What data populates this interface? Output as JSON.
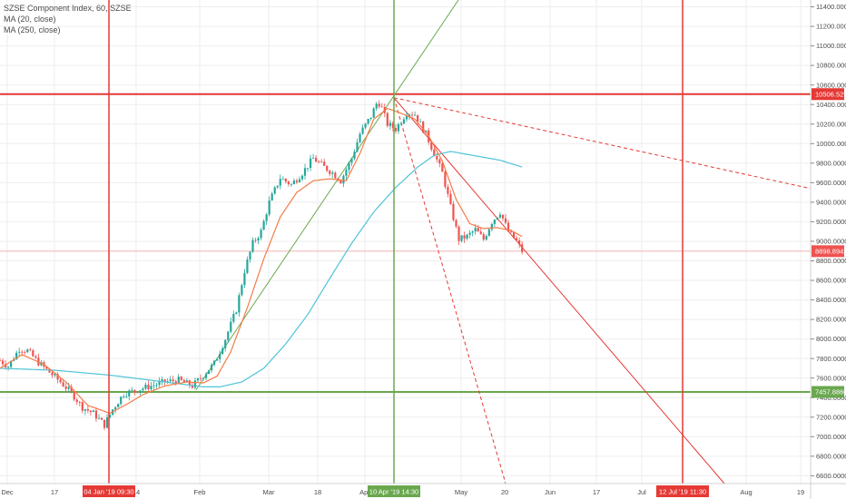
{
  "legend": {
    "title": "SZSE Component Index, 60, SZSE",
    "ma20": "MA (20, close)",
    "ma250": "MA (250, close)"
  },
  "colors": {
    "up": "#26a69a",
    "down": "#ef5350",
    "ma20": "#f57c47",
    "ma250": "#4fc3d8",
    "red": "#e53935",
    "green": "#6aa84f",
    "grid": "#eeeeee",
    "text": "#4a4a4a"
  },
  "chart_data": {
    "type": "candlestick",
    "symbol": "SZSE Component Index",
    "interval": "60",
    "y_axis": {
      "range": [
        6520,
        11470
      ],
      "ticks": [
        "6600.0000",
        "6800.0000",
        "7000.0000",
        "7200.0000",
        "7400.0000",
        "7600.0000",
        "7800.0000",
        "8000.0000",
        "8200.0000",
        "8400.0000",
        "8600.0000",
        "8800.0000",
        "9000.0000",
        "9200.0000",
        "9400.0000",
        "9600.0000",
        "9800.0000",
        "10000.0000",
        "10200.0000",
        "10400.0000",
        "10600.0000",
        "10800.0000",
        "11000.0000",
        "11200.0000",
        "11400.0000"
      ]
    },
    "x_axis": {
      "ticks": [
        "Dec",
        "17",
        "14",
        "Feb",
        "Mar",
        "18",
        "Apr",
        "May",
        "20",
        "Jun",
        "17",
        "Jul",
        "Aug",
        "19"
      ],
      "x_date_labels": [
        "04 Jan '19   09:30",
        "10 Apr '19   14:30",
        "12 Jul '19   11:30"
      ]
    },
    "price_labels": {
      "upper": "10506.5259",
      "last": "8898.8942",
      "lower": "7457.8860"
    },
    "price_path": [
      [
        0.0,
        7780
      ],
      [
        0.3,
        7720
      ],
      [
        0.7,
        7900
      ],
      [
        1.0,
        7880
      ],
      [
        1.4,
        7760
      ],
      [
        1.8,
        7660
      ],
      [
        2.2,
        7560
      ],
      [
        2.6,
        7450
      ],
      [
        3.0,
        7300
      ],
      [
        3.4,
        7240
      ],
      [
        3.8,
        7120
      ],
      [
        4.1,
        7280
      ],
      [
        4.5,
        7440
      ],
      [
        5.0,
        7480
      ],
      [
        5.5,
        7520
      ],
      [
        6.0,
        7560
      ],
      [
        6.5,
        7580
      ],
      [
        7.0,
        7520
      ],
      [
        7.3,
        7600
      ],
      [
        7.8,
        7750
      ],
      [
        8.2,
        8000
      ],
      [
        8.6,
        8300
      ],
      [
        8.9,
        8700
      ],
      [
        9.2,
        8980
      ],
      [
        9.5,
        9100
      ],
      [
        9.8,
        9400
      ],
      [
        10.2,
        9650
      ],
      [
        10.6,
        9580
      ],
      [
        11.0,
        9700
      ],
      [
        11.4,
        9850
      ],
      [
        11.8,
        9760
      ],
      [
        12.1,
        9700
      ],
      [
        12.4,
        9620
      ],
      [
        12.8,
        9850
      ],
      [
        13.1,
        10100
      ],
      [
        13.5,
        10280
      ],
      [
        13.75,
        10440
      ],
      [
        13.9,
        10360
      ],
      [
        14.1,
        10200
      ],
      [
        14.4,
        10150
      ],
      [
        14.8,
        10320
      ],
      [
        15.1,
        10300
      ],
      [
        15.5,
        10100
      ],
      [
        15.8,
        9900
      ],
      [
        16.1,
        9700
      ],
      [
        16.4,
        9350
      ],
      [
        16.7,
        9020
      ],
      [
        17.0,
        9050
      ],
      [
        17.3,
        9120
      ],
      [
        17.6,
        9020
      ],
      [
        17.9,
        9200
      ],
      [
        18.2,
        9300
      ],
      [
        18.5,
        9100
      ],
      [
        18.8,
        9000
      ],
      [
        19.0,
        8900
      ]
    ],
    "ma20_path": [
      [
        0.0,
        7700
      ],
      [
        0.8,
        7840
      ],
      [
        1.6,
        7740
      ],
      [
        2.4,
        7560
      ],
      [
        3.2,
        7320
      ],
      [
        4.0,
        7240
      ],
      [
        4.6,
        7330
      ],
      [
        5.2,
        7430
      ],
      [
        6.0,
        7520
      ],
      [
        6.8,
        7560
      ],
      [
        7.4,
        7550
      ],
      [
        7.9,
        7620
      ],
      [
        8.4,
        7870
      ],
      [
        9.0,
        8320
      ],
      [
        9.6,
        8820
      ],
      [
        10.2,
        9250
      ],
      [
        10.8,
        9500
      ],
      [
        11.4,
        9620
      ],
      [
        12.0,
        9640
      ],
      [
        12.6,
        9620
      ],
      [
        13.1,
        9900
      ],
      [
        13.6,
        10250
      ],
      [
        14.1,
        10360
      ],
      [
        14.6,
        10310
      ],
      [
        15.1,
        10250
      ],
      [
        15.6,
        10080
      ],
      [
        16.1,
        9820
      ],
      [
        16.6,
        9430
      ],
      [
        17.1,
        9180
      ],
      [
        17.6,
        9130
      ],
      [
        18.1,
        9140
      ],
      [
        18.6,
        9110
      ],
      [
        19.0,
        9050
      ]
    ],
    "ma250_path": [
      [
        0.0,
        7700
      ],
      [
        2.0,
        7680
      ],
      [
        4.0,
        7630
      ],
      [
        6.0,
        7560
      ],
      [
        7.4,
        7510
      ],
      [
        8.0,
        7510
      ],
      [
        8.8,
        7560
      ],
      [
        9.6,
        7700
      ],
      [
        10.4,
        7950
      ],
      [
        11.2,
        8250
      ],
      [
        12.0,
        8620
      ],
      [
        12.8,
        8980
      ],
      [
        13.6,
        9300
      ],
      [
        14.4,
        9550
      ],
      [
        15.2,
        9760
      ],
      [
        15.8,
        9880
      ],
      [
        16.4,
        9920
      ],
      [
        17.2,
        9880
      ],
      [
        18.2,
        9830
      ],
      [
        19.0,
        9760
      ]
    ],
    "x_index_range": [
      0,
      29.5
    ]
  }
}
